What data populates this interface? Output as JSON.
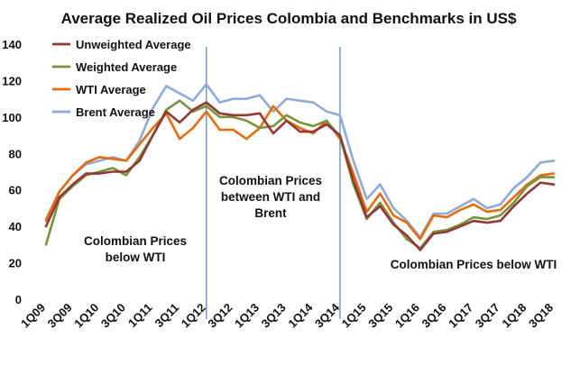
{
  "chart_data": {
    "type": "line",
    "title": "Average Realized Oil Prices Colombia  and  Benchmarks  in US$",
    "xlabel": "",
    "ylabel": "",
    "ylim": [
      0,
      140
    ],
    "yticks": [
      0,
      20,
      40,
      60,
      80,
      100,
      120,
      140
    ],
    "grid": false,
    "legend_position": "top-left",
    "categories": [
      "1Q09",
      "2Q09",
      "3Q09",
      "4Q09",
      "1Q10",
      "2Q10",
      "3Q10",
      "4Q10",
      "1Q11",
      "2Q11",
      "3Q11",
      "4Q11",
      "1Q12",
      "2Q12",
      "3Q12",
      "4Q12",
      "1Q13",
      "2Q13",
      "3Q13",
      "4Q13",
      "1Q14",
      "2Q14",
      "3Q14",
      "4Q14",
      "1Q15",
      "2Q15",
      "3Q15",
      "4Q15",
      "1Q16",
      "2Q16",
      "3Q16",
      "4Q16",
      "1Q17",
      "2Q17",
      "3Q17",
      "4Q17",
      "1Q18",
      "2Q18",
      "3Q18"
    ],
    "tick_labels": [
      "1Q09",
      "3Q09",
      "1Q10",
      "3Q10",
      "1Q11",
      "3Q11",
      "1Q12",
      "3Q12",
      "1Q13",
      "3Q13",
      "1Q14",
      "3Q14",
      "1Q15",
      "3Q15",
      "1Q16",
      "3Q16",
      "1Q17",
      "3Q17",
      "1Q18",
      "3Q18"
    ],
    "series": [
      {
        "name": "Unweighted Average",
        "color": "#953735",
        "values": [
          40,
          56,
          63,
          69,
          69,
          70,
          70,
          76,
          90,
          103,
          97,
          104,
          108,
          102,
          101,
          101,
          102,
          91,
          98,
          92,
          92,
          96,
          90,
          65,
          45,
          51,
          41,
          35,
          27,
          36,
          37,
          40,
          43,
          42,
          43,
          51,
          58,
          64,
          63
        ]
      },
      {
        "name": "Weighted Average",
        "color": "#77933C",
        "values": [
          30,
          55,
          62,
          68,
          70,
          72,
          68,
          78,
          90,
          104,
          109,
          103,
          106,
          100,
          100,
          98,
          94,
          95,
          101,
          97,
          95,
          98,
          89,
          63,
          44,
          53,
          42,
          33,
          28,
          37,
          38,
          41,
          45,
          44,
          46,
          53,
          62,
          67,
          67
        ]
      },
      {
        "name": "WTI Average",
        "color": "#E46C0A",
        "values": [
          43,
          59,
          68,
          75,
          78,
          77,
          76,
          85,
          94,
          102,
          88,
          94,
          103,
          93,
          93,
          88,
          94,
          106,
          98,
          94,
          91,
          98,
          88,
          69,
          48,
          58,
          46,
          42,
          33,
          46,
          45,
          49,
          52,
          48,
          49,
          56,
          63,
          68,
          69
        ]
      },
      {
        "name": "Brent Average",
        "color": "#8EA9DB",
        "values": [
          44,
          59,
          68,
          74,
          76,
          78,
          76,
          87,
          105,
          117,
          113,
          109,
          118,
          108,
          110,
          110,
          112,
          103,
          110,
          109,
          108,
          103,
          101,
          76,
          55,
          63,
          50,
          43,
          34,
          47,
          47,
          51,
          55,
          50,
          52,
          61,
          67,
          75,
          76
        ]
      }
    ],
    "vlines": [
      "1Q12",
      "3Q14"
    ],
    "annotations": [
      {
        "lines": [
          "Colombian Prices",
          "below WTI"
        ]
      },
      {
        "lines": [
          "Colombian Prices",
          "between WTI and",
          "Brent"
        ]
      },
      {
        "lines": [
          "Colombian Prices below WTI"
        ]
      }
    ]
  }
}
